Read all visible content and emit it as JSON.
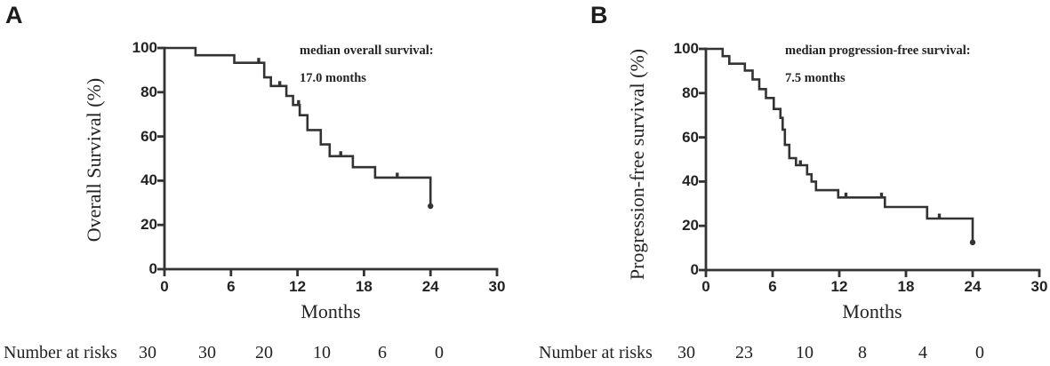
{
  "colors": {
    "line": "#333333",
    "text": "#232323",
    "background": "#ffffff"
  },
  "chart_data": [
    {
      "type": "line",
      "subtype": "kaplan-meier-step",
      "panel_letter": "A",
      "xlabel": "Months",
      "ylabel": "Overall Survival (%)",
      "xlim": [
        0,
        30
      ],
      "ylim": [
        0,
        100
      ],
      "xticks": [
        0,
        6,
        12,
        18,
        24,
        30
      ],
      "yticks": [
        0,
        20,
        40,
        60,
        80,
        100
      ],
      "grid": false,
      "annotation_line1": "median overall survival:",
      "annotation_line2": "17.0 months",
      "median_months": 17.0,
      "step_points": [
        [
          0,
          100
        ],
        [
          2.8,
          100
        ],
        [
          2.8,
          96.7
        ],
        [
          6.3,
          96.7
        ],
        [
          6.3,
          93.3
        ],
        [
          9.0,
          93.3
        ],
        [
          9.0,
          86.7
        ],
        [
          9.6,
          86.7
        ],
        [
          9.6,
          82.8
        ],
        [
          11.0,
          82.8
        ],
        [
          11.0,
          78.3
        ],
        [
          11.6,
          78.3
        ],
        [
          11.6,
          74.2
        ],
        [
          12.2,
          74.2
        ],
        [
          12.2,
          69.6
        ],
        [
          12.9,
          69.6
        ],
        [
          12.9,
          62.9
        ],
        [
          14.1,
          62.9
        ],
        [
          14.1,
          56.4
        ],
        [
          14.9,
          56.4
        ],
        [
          14.9,
          51.1
        ],
        [
          17.0,
          51.1
        ],
        [
          17.0,
          46.1
        ],
        [
          19.0,
          46.1
        ],
        [
          19.0,
          41.4
        ],
        [
          24.0,
          41.4
        ],
        [
          24.0,
          28.5
        ]
      ],
      "censor_marks": [
        [
          8.5,
          93.3
        ],
        [
          10.4,
          82.8
        ],
        [
          12.1,
          74.2
        ],
        [
          15.9,
          51.1
        ],
        [
          21.0,
          41.4
        ]
      ],
      "terminal_point": [
        24.0,
        28.5
      ],
      "number_at_risk": {
        "label": "Number at risks",
        "times": [
          0,
          6,
          12,
          18,
          24,
          30
        ],
        "values": [
          30,
          30,
          20,
          10,
          6,
          0
        ]
      }
    },
    {
      "type": "line",
      "subtype": "kaplan-meier-step",
      "panel_letter": "B",
      "xlabel": "Months",
      "ylabel": "Progression-free survival (%)",
      "xlim": [
        0,
        30
      ],
      "ylim": [
        0,
        100
      ],
      "xticks": [
        0,
        6,
        12,
        18,
        24,
        30
      ],
      "yticks": [
        0,
        20,
        40,
        60,
        80,
        100
      ],
      "grid": false,
      "annotation_line1": "median progression-free survival:",
      "annotation_line2": "7.5 months",
      "median_months": 7.5,
      "step_points": [
        [
          0,
          100
        ],
        [
          1.5,
          100
        ],
        [
          1.5,
          96.7
        ],
        [
          2.1,
          96.7
        ],
        [
          2.1,
          93.3
        ],
        [
          3.5,
          93.3
        ],
        [
          3.5,
          90.2
        ],
        [
          4.2,
          90.2
        ],
        [
          4.2,
          86.2
        ],
        [
          4.8,
          86.2
        ],
        [
          4.8,
          81.8
        ],
        [
          5.4,
          81.8
        ],
        [
          5.4,
          77.8
        ],
        [
          6.1,
          77.8
        ],
        [
          6.1,
          72.8
        ],
        [
          6.7,
          72.8
        ],
        [
          6.7,
          68.8
        ],
        [
          6.9,
          68.8
        ],
        [
          6.9,
          63.5
        ],
        [
          7.1,
          63.5
        ],
        [
          7.1,
          56.6
        ],
        [
          7.5,
          56.6
        ],
        [
          7.5,
          50.6
        ],
        [
          8.1,
          50.6
        ],
        [
          8.1,
          47.4
        ],
        [
          9.1,
          47.4
        ],
        [
          9.1,
          43.3
        ],
        [
          9.5,
          43.3
        ],
        [
          9.5,
          40.0
        ],
        [
          9.9,
          40.0
        ],
        [
          9.9,
          36.1
        ],
        [
          11.9,
          36.1
        ],
        [
          11.9,
          32.8
        ],
        [
          16.1,
          32.8
        ],
        [
          16.1,
          28.5
        ],
        [
          19.9,
          28.5
        ],
        [
          19.9,
          23.3
        ],
        [
          24.0,
          23.3
        ],
        [
          24.0,
          12.5
        ]
      ],
      "censor_marks": [
        [
          8.5,
          47.4
        ],
        [
          12.6,
          32.8
        ],
        [
          15.8,
          32.8
        ],
        [
          21.0,
          23.3
        ]
      ],
      "terminal_point": [
        24.0,
        12.5
      ],
      "number_at_risk": {
        "label": "Number at risks",
        "times": [
          0,
          6,
          12,
          18,
          24,
          30
        ],
        "values": [
          30,
          23,
          10,
          8,
          4,
          0
        ]
      }
    }
  ]
}
